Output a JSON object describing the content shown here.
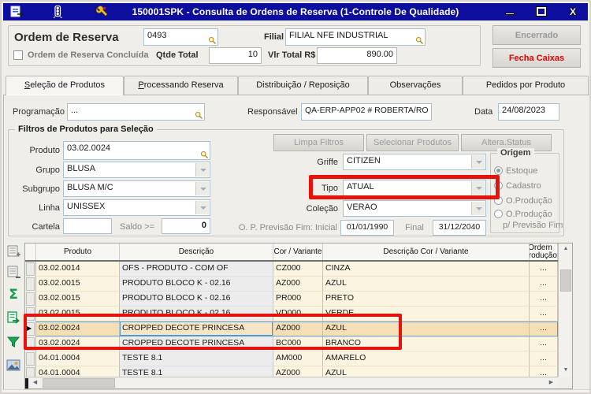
{
  "colors": {
    "titlebar_blue": "#0d0d9e",
    "annotation_red": "#e8120c",
    "selection_blue": "#5b9bd5",
    "grid_row_cream": "#fbf4e0",
    "grid_descricao_gray": "#ececec",
    "selected_row_tan": "#f4dfb6",
    "fecha_caixas_red": "#e60000",
    "disabled_text_gray": "#9a9a9a"
  },
  "icons": {
    "sum_glyph": "Σ",
    "scroll_up": "▲",
    "scroll_down": "▼",
    "scroll_left": "◀",
    "scroll_right": "▶",
    "close_glyph": "X",
    "titlebar_icons": [
      "form-export-icon",
      "traffic-light-icon",
      "wrench-icon"
    ]
  },
  "titlebar": {
    "title": "150001SPK - Consulta de Ordens de Reserva (1-Controle De Qualidade)"
  },
  "header": {
    "ordem_label": "Ordem de Reserva",
    "ordem_value": "0493",
    "filial_label": "Filial",
    "filial_value": "FILIAL NFE INDUSTRIAL",
    "concluida_label": "Ordem de Reserva Concluída",
    "qtde_label": "Qtde Total",
    "qtde_value": "10",
    "vlr_label": "Vlr Total R$",
    "vlr_value": "890.00",
    "encerrado_button": "Encerrado",
    "fecha_caixas_button": "Fecha Caixas"
  },
  "tabs": [
    {
      "label": "Seleção de Produtos",
      "active": true,
      "underline_first": true
    },
    {
      "label": "Processando Reserva",
      "active": false,
      "underline_first": true
    },
    {
      "label": "Distribuição / Reposição",
      "active": false,
      "underline_first": false
    },
    {
      "label": "Observações",
      "active": false,
      "underline_first": false
    },
    {
      "label": "Pedidos por Produto",
      "active": false,
      "underline_first": false
    }
  ],
  "info_row": {
    "programacao_label": "Programação",
    "programacao_value": "...",
    "responsavel_label": "Responsável",
    "responsavel_value": "QA-ERP-APP02 # ROBERTA/RO",
    "data_label": "Data",
    "data_value": "24/08/2023"
  },
  "filters": {
    "title": "Filtros de Produtos para Seleção",
    "produto_label": "Produto",
    "produto_value": "03.02.0024",
    "grupo_label": "Grupo",
    "grupo_value": "BLUSA",
    "subgrupo_label": "Subgrupo",
    "subgrupo_value": "BLUSA M/C",
    "linha_label": "Linha",
    "linha_value": "UNISSEX",
    "cartela_label": "Cartela",
    "cartela_value": "",
    "saldo_label": "Saldo >=",
    "saldo_value": "0",
    "limpa_button": "Limpa Filtros",
    "selecionar_button": "Selecionar Produtos",
    "altera_button": "Altera.Status",
    "griffe_label": "Griffe",
    "griffe_value": "CITIZEN",
    "tipo_label": "Tipo",
    "tipo_value": "ATUAL",
    "colecao_label": "Coleção",
    "colecao_value": "VERAO",
    "previsao_label": "O. P. Previsão Fim: Inicial",
    "previsao_inicial": "01/01/1990",
    "final_label": "Final",
    "previsao_final": "31/12/2040",
    "origem": {
      "title": "Origem",
      "option_estoque": "Estoque",
      "option_cadastro": "Cadastro",
      "option_oproducao": "O.Produção",
      "option_oproducao_fim": "O.Produção",
      "option_oproducao_fim_line2": "p/ Previsão Fim",
      "selected": "Estoque"
    }
  },
  "grid": {
    "columns": [
      "Produto",
      "Descrição",
      "Cor / Variante",
      "Descrição Cor / Variante",
      "Ordem Produção"
    ],
    "rows": [
      {
        "produto": "03.02.0014",
        "descricao": "OFS - PRODUTO - COM OF",
        "cor": "CZ000",
        "descricao_cor": "CINZA",
        "ordem_producao": "..."
      },
      {
        "produto": "03.02.0015",
        "descricao": "PRODUTO BLOCO K - 02.16",
        "cor": "AZ000",
        "descricao_cor": "AZUL",
        "ordem_producao": "..."
      },
      {
        "produto": "03.02.0015",
        "descricao": "PRODUTO BLOCO K - 02.16",
        "cor": "PR000",
        "descricao_cor": "PRETO",
        "ordem_producao": "..."
      },
      {
        "produto": "03.02.0015",
        "descricao": "PRODUTO BLOCO K - 02.16",
        "cor": "VD000",
        "descricao_cor": "VERDE",
        "ordem_producao": "..."
      },
      {
        "produto": "03.02.0024",
        "descricao": "CROPPED DECOTE PRINCESA",
        "cor": "AZ000",
        "descricao_cor": "AZUL",
        "ordem_producao": "..."
      },
      {
        "produto": "03.02.0024",
        "descricao": "CROPPED DECOTE PRINCESA",
        "cor": "BC000",
        "descricao_cor": "BRANCO",
        "ordem_producao": "..."
      },
      {
        "produto": "04.01.0004",
        "descricao": "TESTE 8.1",
        "cor": "AM000",
        "descricao_cor": "AMARELO",
        "ordem_producao": "..."
      },
      {
        "produto": "04.01.0004",
        "descricao": "TESTE 8.1",
        "cor": "AZ000",
        "descricao_cor": "AZUL",
        "ordem_producao": "..."
      }
    ],
    "selected_row_index": 4,
    "side_toolbar_icons": [
      "insert-record-icon",
      "delete-record-icon",
      "sum-icon",
      "export-record-icon",
      "filter-icon",
      "image-icon"
    ]
  }
}
